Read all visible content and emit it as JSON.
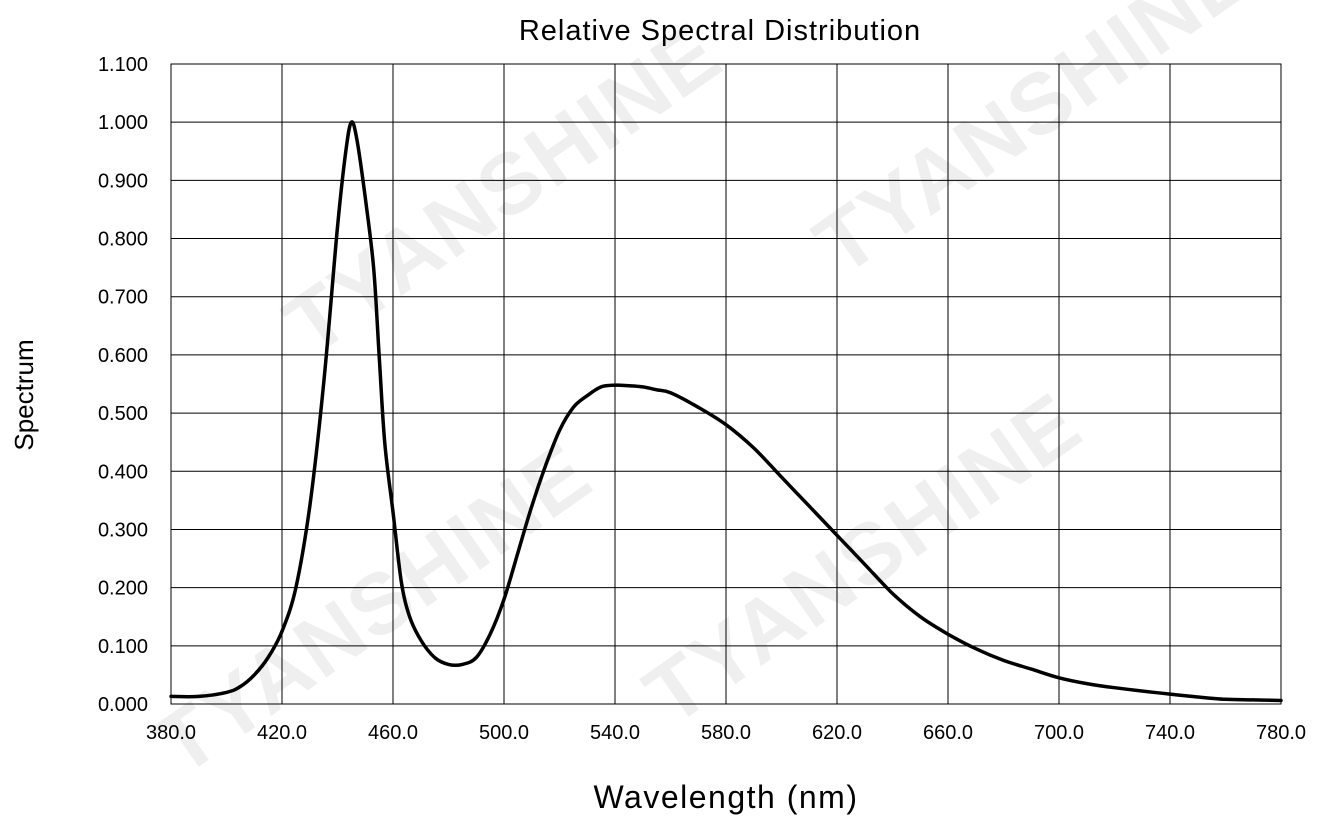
{
  "watermark": {
    "text": "TYANSHINE"
  },
  "chart_data": {
    "type": "line",
    "title": "Relative Spectral Distribution",
    "xlabel": "Wavelength (nm)",
    "ylabel": "Spectrum",
    "xlim": [
      380,
      780
    ],
    "ylim": [
      0,
      1.1
    ],
    "xticks": [
      380,
      420,
      460,
      500,
      540,
      580,
      620,
      660,
      700,
      740,
      780
    ],
    "xtick_labels": [
      "380.0",
      "420.0",
      "460.0",
      "500.0",
      "540.0",
      "580.0",
      "620.0",
      "660.0",
      "700.0",
      "740.0",
      "780.0"
    ],
    "yticks": [
      0,
      0.1,
      0.2,
      0.3,
      0.4,
      0.5,
      0.6,
      0.7,
      0.8,
      0.9,
      1.0,
      1.1
    ],
    "ytick_labels": [
      "0.000",
      "0.100",
      "0.200",
      "0.300",
      "0.400",
      "0.500",
      "0.600",
      "0.700",
      "0.800",
      "0.900",
      "1.000",
      "1.100"
    ],
    "grid": true,
    "series": [
      {
        "line_color": "#000000",
        "x": [
          380,
          390,
          400,
          405,
          410,
          415,
          420,
          425,
          430,
          435,
          440,
          443,
          445,
          447,
          450,
          453,
          455,
          457,
          460,
          463,
          466,
          470,
          475,
          480,
          485,
          490,
          495,
          500,
          505,
          510,
          515,
          520,
          525,
          530,
          535,
          540,
          545,
          550,
          555,
          560,
          570,
          580,
          590,
          600,
          610,
          620,
          630,
          640,
          650,
          660,
          670,
          680,
          690,
          700,
          710,
          720,
          740,
          750,
          760,
          770,
          780
        ],
        "y": [
          0.013,
          0.013,
          0.02,
          0.03,
          0.05,
          0.08,
          0.125,
          0.2,
          0.34,
          0.55,
          0.82,
          0.95,
          1.0,
          0.97,
          0.87,
          0.75,
          0.6,
          0.45,
          0.33,
          0.21,
          0.15,
          0.11,
          0.08,
          0.068,
          0.068,
          0.08,
          0.12,
          0.18,
          0.26,
          0.34,
          0.41,
          0.47,
          0.51,
          0.53,
          0.545,
          0.548,
          0.547,
          0.545,
          0.54,
          0.535,
          0.51,
          0.48,
          0.44,
          0.39,
          0.34,
          0.29,
          0.24,
          0.19,
          0.15,
          0.12,
          0.095,
          0.075,
          0.06,
          0.045,
          0.035,
          0.028,
          0.017,
          0.012,
          0.008,
          0.007,
          0.006
        ]
      }
    ]
  }
}
